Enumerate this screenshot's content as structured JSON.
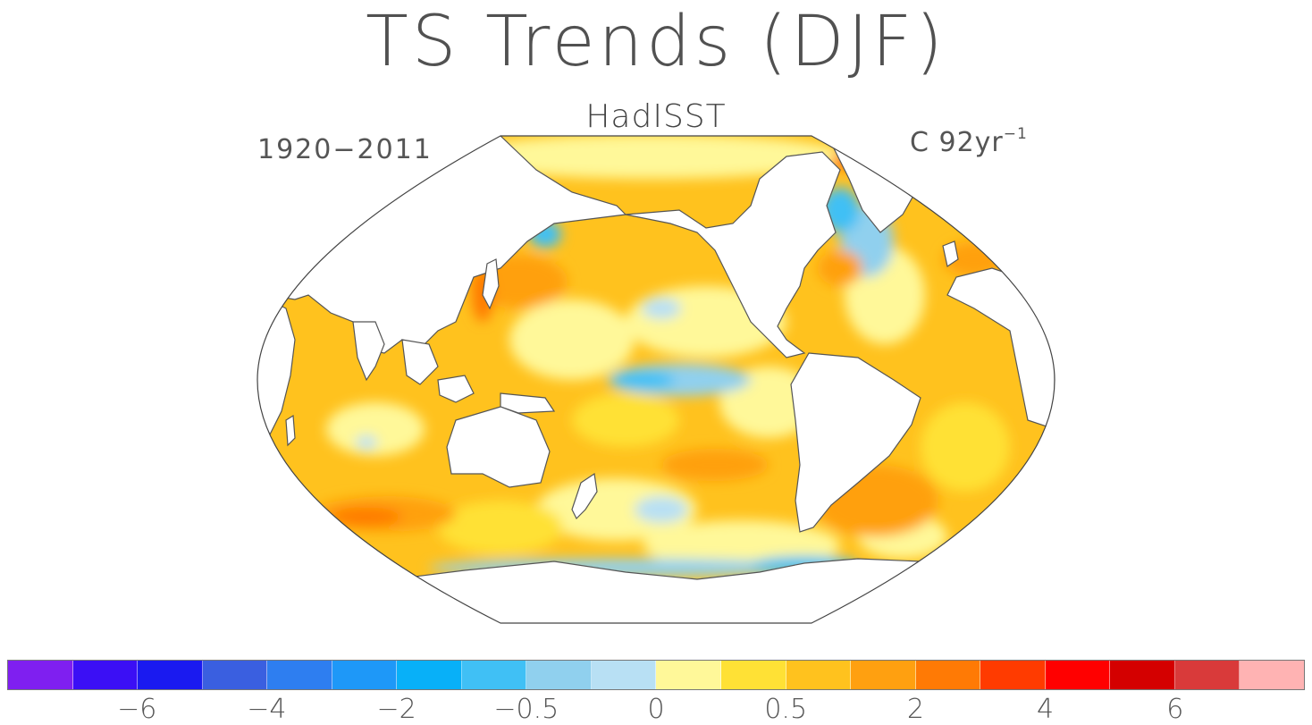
{
  "title": "TS Trends (DJF)",
  "subtitle": "HadISST",
  "period": "1920−2011",
  "units": {
    "base": "C 92yr",
    "exponent": "−1"
  },
  "colorbar": {
    "colors": [
      "#7f1ff0",
      "#3b0ff5",
      "#1a1af0",
      "#3a5fe0",
      "#2e7ef0",
      "#1e98f8",
      "#08b0f8",
      "#40c0f5",
      "#90d0ee",
      "#b8e0f4",
      "#fff899",
      "#ffe135",
      "#ffc21e",
      "#ffa010",
      "#ff7a05",
      "#ff3b00",
      "#ff0000",
      "#d40000",
      "#d93a3a",
      "#ffb3b3"
    ],
    "labels": [
      {
        "text": "−6",
        "after_swatch": 2
      },
      {
        "text": "−4",
        "after_swatch": 4
      },
      {
        "text": "−2",
        "after_swatch": 6
      },
      {
        "text": "−0.5",
        "after_swatch": 8
      },
      {
        "text": "0",
        "after_swatch": 10
      },
      {
        "text": "0.5",
        "after_swatch": 12
      },
      {
        "text": "2",
        "after_swatch": 14
      },
      {
        "text": "4",
        "after_swatch": 16
      },
      {
        "text": "6",
        "after_swatch": 18
      }
    ]
  },
  "map_colors": {
    "ocean_base": "#ffc21e",
    "warm_light": "#ffe135",
    "pale": "#fff899",
    "cool_light": "#b8e0f4",
    "cool": "#90d0ee",
    "cool_mid": "#40c0f5",
    "warm_orange": "#ffa010",
    "warm_strong": "#ff7a05",
    "land": "#ffffff",
    "coast": "#555555"
  }
}
